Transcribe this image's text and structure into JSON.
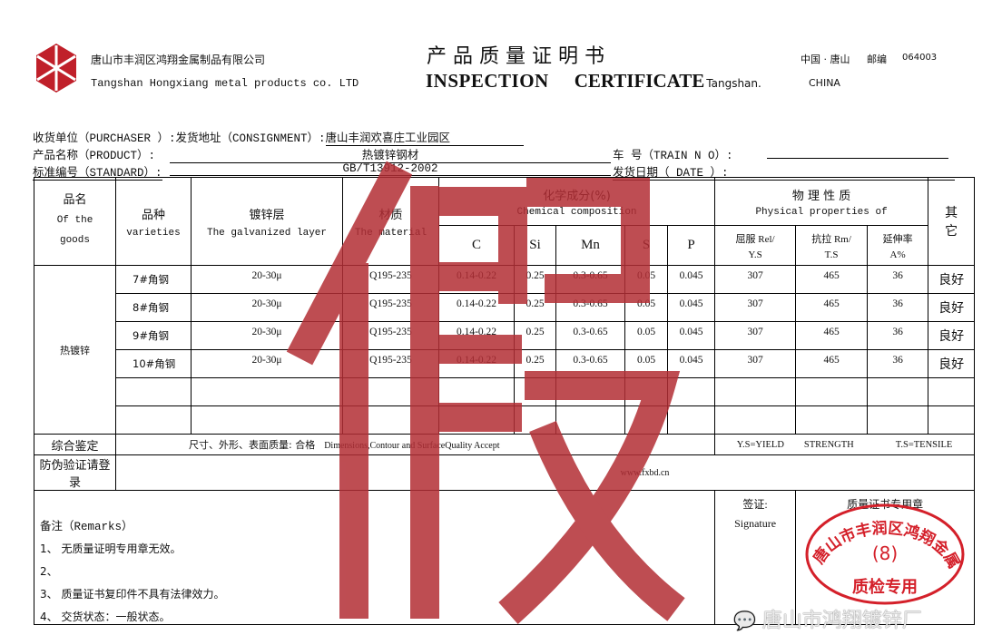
{
  "header": {
    "company_cn": "唐山市丰润区鸿翔金属制品有限公司",
    "company_en": "Tangshan Hongxiang metal products co. LTD",
    "title_cn": "产 品 质 量 证 明 书",
    "title_en_1": "INSPECTION",
    "title_en_2": "CERTIFICATE",
    "city_en": "Tangshan.",
    "location_cn": "中国 · 唐山",
    "postcode_label": "邮编",
    "postcode": "064003",
    "country": "CHINA",
    "logo_color": "#c0202a"
  },
  "info": {
    "purchaser_label": "收货单位（PURCHASER ）:",
    "consignment_label": "发货地址（CONSIGNMENT）:",
    "consignment_value": "唐山丰润欢喜庄工业园区",
    "product_label": "产品名称（PRODUCT）:",
    "product_value": "热镀锌钢材",
    "train_label": "车    号（TRAIN N O）:",
    "standard_label": "标准编号（STANDARD）:",
    "standard_value": "GB/T13912-2002",
    "date_label": "发货日期（    DATE   ）:"
  },
  "table": {
    "h_goods_cn": "品名",
    "h_goods_en": "Of the goods",
    "h_variety_cn": "品种",
    "h_variety_en": "varieties",
    "h_layer_cn": "镀锌层",
    "h_layer_en": "The galvanized layer",
    "h_material_cn": "材质",
    "h_material_en": "The material",
    "h_chem_cn": "化学成分(%)",
    "h_chem_en": "Chemical composition",
    "h_phys_cn": "物 理 性 质",
    "h_phys_en": "Physical properties of",
    "h_other": "其它",
    "cols": [
      "C",
      "Si",
      "Mn",
      "S",
      "P"
    ],
    "h_ys_1": "屈服 Rel/",
    "h_ys_2": "Y.S",
    "h_ts_1": "抗拉 Rm/",
    "h_ts_2": "T.S",
    "h_el_1": "延伸率",
    "h_el_2": "A%",
    "goods_name": "热镀锌",
    "rows": [
      {
        "variety": "7#角钢",
        "layer": "20-30μ",
        "material": "Q195-235",
        "c": "0.14-0.22",
        "si": "0.25",
        "mn": "0.3-0.65",
        "s": "0.05",
        "p": "0.045",
        "ys": "307",
        "ts": "465",
        "el": "36",
        "other": "良好"
      },
      {
        "variety": "8#角钢",
        "layer": "20-30μ",
        "material": "Q195-235",
        "c": "0.14-0.22",
        "si": "0.25",
        "mn": "0.3-0.65",
        "s": "0.05",
        "p": "0.045",
        "ys": "307",
        "ts": "465",
        "el": "36",
        "other": "良好"
      },
      {
        "variety": "9#角钢",
        "layer": "20-30μ",
        "material": "Q195-235",
        "c": "0.14-0.22",
        "si": "0.25",
        "mn": "0.3-0.65",
        "s": "0.05",
        "p": "0.045",
        "ys": "307",
        "ts": "465",
        "el": "36",
        "other": "良好"
      },
      {
        "variety": "10#角钢",
        "layer": "20-30μ",
        "material": "Q195-235",
        "c": "0.14-0.22",
        "si": "0.25",
        "mn": "0.3-0.65",
        "s": "0.05",
        "p": "0.045",
        "ys": "307",
        "ts": "465",
        "el": "36",
        "other": "良好"
      }
    ],
    "overall_label": "综合鉴定",
    "overall_cn": "尺寸、外形、表面质量: 合格",
    "overall_en": "Dimensions,Contour  and SurfaceQuality Accept",
    "ys_note": "Y.S=YIELD",
    "strength_note": "STRENGTH",
    "ts_note": "T.S=TENSILE",
    "verify_label": "防伪验证请登录",
    "verify_url": "www.fxbd.cn",
    "remarks_title": "备注（Remarks）",
    "remarks": [
      "1、 无质量证明专用章无效。",
      "2、",
      "3、 质量证书复印件不具有法律效力。",
      "4、 交货状态：一般状态。"
    ],
    "signature_cn": "签证:",
    "signature_en": "Signature",
    "stamp_label": "质量证书专用章"
  },
  "stamp": {
    "text_arc": "唐山市丰润区鸿翔金属制品",
    "number": "(8)",
    "bottom": "质检专用",
    "color": "#d4202a"
  },
  "watermark": {
    "fake_char": "假",
    "fake_color": "#b32e35",
    "wechat": "唐山市鸿翔镀锌厂"
  }
}
